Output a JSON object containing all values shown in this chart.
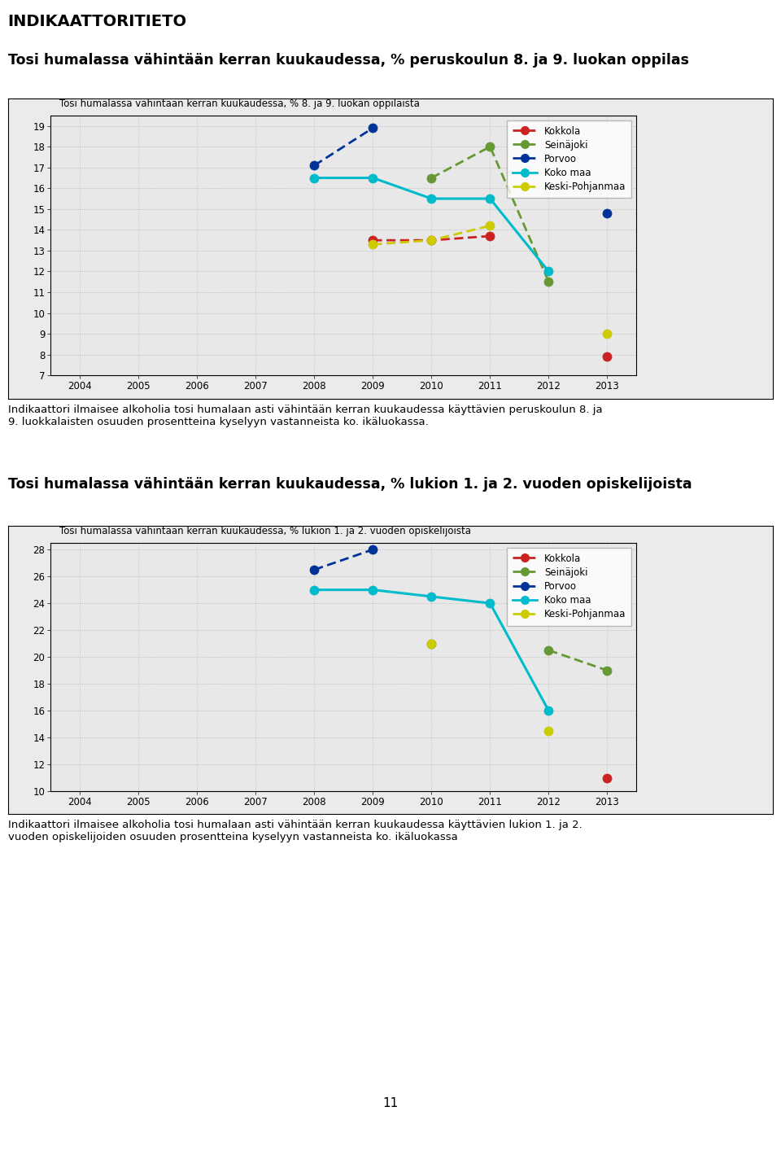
{
  "heading1": "INDIKAATTORITIETO",
  "heading2": "Tosi humalassa vähintään kerran kuukaudessa, % peruskoulun 8. ja 9. luokan oppilas",
  "heading3": "Tosi humalassa vähintään kerran kuukaudessa, % lukion 1. ja 2. vuoden opiskelijoista",
  "chart1_title": "Tosi humalassa vähintään kerran kuukaudessa, % 8. ja 9. luokan oppilaista",
  "chart2_title": "Tosi humalassa vähintään kerran kuukaudessa, % lukion 1. ja 2. vuoden opiskelijoista",
  "years": [
    2004,
    2005,
    2006,
    2007,
    2008,
    2009,
    2010,
    2011,
    2012,
    2013
  ],
  "chart1": {
    "Kokkola": [
      null,
      null,
      null,
      null,
      null,
      13.5,
      13.5,
      13.7,
      null,
      7.9
    ],
    "Seinäjoki": [
      null,
      null,
      null,
      null,
      null,
      null,
      16.5,
      18.0,
      11.5,
      null
    ],
    "Porvoo": [
      null,
      null,
      null,
      null,
      17.1,
      18.9,
      null,
      null,
      null,
      14.8
    ],
    "Koko maa": [
      null,
      null,
      null,
      null,
      16.5,
      16.5,
      15.5,
      15.5,
      12.0,
      null
    ],
    "Keski-Pohjanmaa": [
      null,
      null,
      null,
      null,
      null,
      13.3,
      13.5,
      14.2,
      null,
      9.0
    ]
  },
  "chart2": {
    "Kokkola": [
      null,
      null,
      null,
      null,
      null,
      null,
      null,
      null,
      null,
      11.0
    ],
    "Seinäjoki": [
      null,
      null,
      null,
      null,
      null,
      null,
      21.0,
      null,
      20.5,
      19.0
    ],
    "Porvoo": [
      null,
      null,
      null,
      null,
      26.5,
      28.0,
      null,
      null,
      null,
      null
    ],
    "Koko maa": [
      null,
      null,
      null,
      null,
      25.0,
      25.0,
      24.5,
      24.0,
      16.0,
      null
    ],
    "Keski-Pohjanmaa": [
      null,
      null,
      null,
      null,
      null,
      null,
      21.0,
      null,
      14.5,
      null
    ]
  },
  "ylim1": [
    7,
    19.5
  ],
  "ylim2": [
    10,
    28.5
  ],
  "yticks1": [
    7,
    8,
    9,
    10,
    11,
    12,
    13,
    14,
    15,
    16,
    17,
    18,
    19
  ],
  "yticks2": [
    10,
    12,
    14,
    16,
    18,
    20,
    22,
    24,
    26,
    28
  ],
  "colors": {
    "Kokkola": "#cc2222",
    "Seinäjoki": "#669933",
    "Porvoo": "#003399",
    "Koko maa": "#00bbcc",
    "Keski-Pohjanmaa": "#cccc00"
  },
  "description1": "Indikaattori ilmaisee alkoholia tosi humalaan asti vähintään kerran kuukaudessa käyttävien peruskoulun 8. ja\n9. luokkalaisten osuuden prosentteina kyselyyn vastanneista ko. ikäluokassa.",
  "description2": "Indikaattori ilmaisee alkoholia tosi humalaan asti vähintään kerran kuukaudessa käyttävien lukion 1. ja 2.\nvuoden opiskelijoiden osuuden prosentteina kyselyyn vastanneista ko. ikäluokassa",
  "page_number": "11",
  "series_names": [
    "Kokkola",
    "Seinäjoki",
    "Porvoo",
    "Koko maa",
    "Keski-Pohjanmaa"
  ]
}
